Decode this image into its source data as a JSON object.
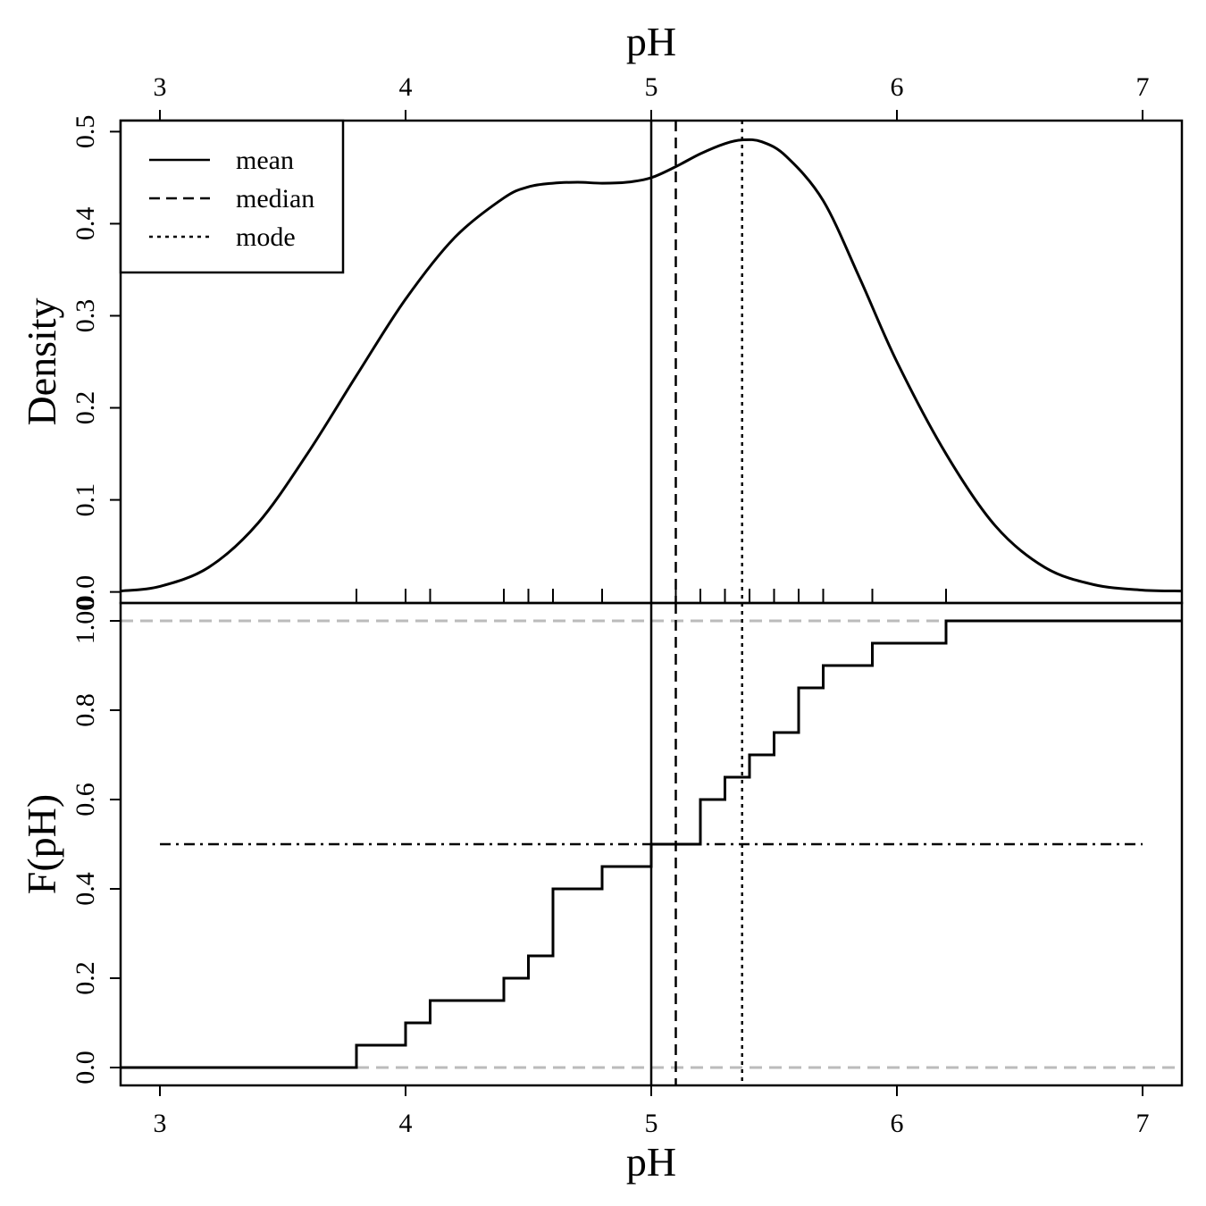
{
  "chart_data": [
    {
      "type": "line",
      "panel": "density",
      "title": "",
      "xlabel": "pH",
      "ylabel": "Density",
      "xlim": [
        2.84,
        7.16
      ],
      "ylim": [
        -0.012,
        0.512
      ],
      "x_ticks": [
        3,
        4,
        5,
        6,
        7
      ],
      "x_tick_labels": [
        "3",
        "4",
        "5",
        "6",
        "7"
      ],
      "y_ticks": [
        0.0,
        0.1,
        0.2,
        0.3,
        0.4,
        0.5
      ],
      "y_tick_labels": [
        "0.0",
        "0.1",
        "0.2",
        "0.3",
        "0.4",
        "0.5"
      ],
      "series": [
        {
          "name": "density",
          "x": [
            2.84,
            3.0,
            3.2,
            3.4,
            3.6,
            3.8,
            4.0,
            4.2,
            4.4,
            4.5,
            4.6,
            4.7,
            4.8,
            4.9,
            5.0,
            5.1,
            5.2,
            5.3,
            5.37,
            5.45,
            5.55,
            5.7,
            5.85,
            6.0,
            6.2,
            6.4,
            6.6,
            6.8,
            7.0,
            7.16
          ],
          "y": [
            0.001,
            0.006,
            0.027,
            0.075,
            0.15,
            0.235,
            0.318,
            0.385,
            0.428,
            0.44,
            0.444,
            0.445,
            0.444,
            0.445,
            0.45,
            0.462,
            0.476,
            0.487,
            0.491,
            0.489,
            0.473,
            0.425,
            0.34,
            0.25,
            0.15,
            0.072,
            0.027,
            0.008,
            0.002,
            0.001
          ]
        }
      ],
      "rug": [
        3.8,
        4.0,
        4.1,
        4.4,
        4.5,
        4.6,
        4.8,
        5.0,
        5.1,
        5.2,
        5.3,
        5.4,
        5.5,
        5.6,
        5.7,
        5.9,
        6.2
      ],
      "vlines": {
        "mean": 5.0,
        "median": 5.1,
        "mode": 5.37
      },
      "legend": {
        "position": "top-left",
        "entries": [
          {
            "label": "mean",
            "style": "solid"
          },
          {
            "label": "median",
            "style": "dashed"
          },
          {
            "label": "mode",
            "style": "dotted"
          }
        ]
      }
    },
    {
      "type": "line",
      "panel": "ecdf",
      "title": "",
      "xlabel": "pH",
      "ylabel": "F(pH)",
      "xlim": [
        2.84,
        7.16
      ],
      "ylim": [
        -0.04,
        1.04
      ],
      "x_ticks": [
        3,
        4,
        5,
        6,
        7
      ],
      "x_tick_labels": [
        "3",
        "4",
        "5",
        "6",
        "7"
      ],
      "y_ticks": [
        0.0,
        0.2,
        0.4,
        0.6,
        0.8,
        1.0
      ],
      "y_tick_labels": [
        "0.0",
        "0.2",
        "0.4",
        "0.6",
        "0.8",
        "1.00"
      ],
      "series": [
        {
          "name": "ecdf",
          "x": [
            3.8,
            4.0,
            4.1,
            4.4,
            4.5,
            4.6,
            4.8,
            5.0,
            5.2,
            5.3,
            5.4,
            5.5,
            5.6,
            5.7,
            5.9,
            6.2
          ],
          "y": [
            0.05,
            0.1,
            0.15,
            0.2,
            0.25,
            0.4,
            0.45,
            0.5,
            0.6,
            0.65,
            0.7,
            0.75,
            0.85,
            0.9,
            0.95,
            1.0
          ]
        }
      ],
      "reference_lines": {
        "lower": 0.0,
        "upper": 1.0,
        "half": 0.5,
        "half_x_range": [
          3.0,
          7.0
        ]
      },
      "vlines": {
        "mean": 5.0,
        "median": 5.1,
        "mode": 5.37
      }
    }
  ],
  "colors": {
    "ink": "#000000",
    "reference": "#bbbbbb"
  }
}
